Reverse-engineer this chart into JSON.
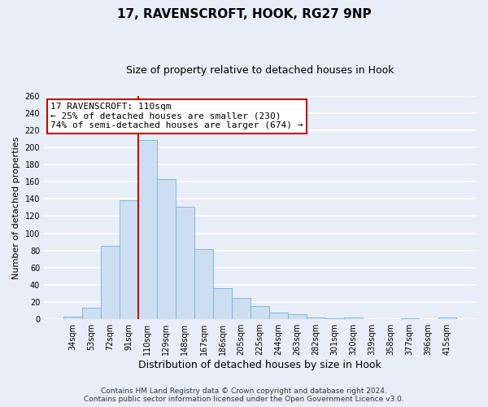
{
  "title": "17, RAVENSCROFT, HOOK, RG27 9NP",
  "subtitle": "Size of property relative to detached houses in Hook",
  "xlabel": "Distribution of detached houses by size in Hook",
  "ylabel": "Number of detached properties",
  "categories": [
    "34sqm",
    "53sqm",
    "72sqm",
    "91sqm",
    "110sqm",
    "129sqm",
    "148sqm",
    "167sqm",
    "186sqm",
    "205sqm",
    "225sqm",
    "244sqm",
    "263sqm",
    "282sqm",
    "301sqm",
    "320sqm",
    "339sqm",
    "358sqm",
    "377sqm",
    "396sqm",
    "415sqm"
  ],
  "bar_heights": [
    3,
    13,
    85,
    138,
    209,
    163,
    131,
    82,
    36,
    25,
    15,
    8,
    6,
    2,
    1,
    2,
    0,
    0,
    1,
    0,
    2
  ],
  "bar_color": "#ccdff2",
  "bar_edge_color": "#7aafd4",
  "background_color": "#e8eef8",
  "grid_color": "#ffffff",
  "vline_x_index": 4,
  "vline_color": "#cc0000",
  "ylim": [
    0,
    260
  ],
  "yticks": [
    0,
    20,
    40,
    60,
    80,
    100,
    120,
    140,
    160,
    180,
    200,
    220,
    240,
    260
  ],
  "annotation_title": "17 RAVENSCROFT: 110sqm",
  "annotation_line1": "← 25% of detached houses are smaller (230)",
  "annotation_line2": "74% of semi-detached houses are larger (674) →",
  "annotation_box_color": "#ffffff",
  "annotation_border_color": "#cc0000",
  "footer_line1": "Contains HM Land Registry data © Crown copyright and database right 2024.",
  "footer_line2": "Contains public sector information licensed under the Open Government Licence v3.0.",
  "title_fontsize": 11,
  "subtitle_fontsize": 9,
  "xlabel_fontsize": 9,
  "ylabel_fontsize": 8,
  "tick_fontsize": 7,
  "annotation_fontsize": 8,
  "footer_fontsize": 6.5
}
